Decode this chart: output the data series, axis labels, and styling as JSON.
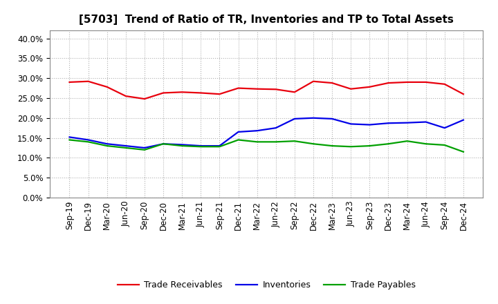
{
  "title": "[5703]  Trend of Ratio of TR, Inventories and TP to Total Assets",
  "labels": [
    "Sep-19",
    "Dec-19",
    "Mar-20",
    "Jun-20",
    "Sep-20",
    "Dec-20",
    "Mar-21",
    "Jun-21",
    "Sep-21",
    "Dec-21",
    "Mar-22",
    "Jun-22",
    "Sep-22",
    "Dec-22",
    "Mar-23",
    "Jun-23",
    "Sep-23",
    "Dec-23",
    "Mar-24",
    "Jun-24",
    "Sep-24",
    "Dec-24"
  ],
  "trade_receivables": [
    29.0,
    29.2,
    27.8,
    25.5,
    24.8,
    26.3,
    26.5,
    26.3,
    26.0,
    27.5,
    27.3,
    27.2,
    26.5,
    29.2,
    28.8,
    27.3,
    27.8,
    28.8,
    29.0,
    29.0,
    28.5,
    26.0
  ],
  "inventories": [
    15.2,
    14.5,
    13.5,
    13.0,
    12.5,
    13.5,
    13.3,
    13.0,
    13.0,
    16.5,
    16.8,
    17.5,
    19.8,
    20.0,
    19.8,
    18.5,
    18.3,
    18.7,
    18.8,
    19.0,
    17.5,
    19.5
  ],
  "trade_payables": [
    14.5,
    14.0,
    13.0,
    12.5,
    12.0,
    13.5,
    13.0,
    12.8,
    12.8,
    14.5,
    14.0,
    14.0,
    14.2,
    13.5,
    13.0,
    12.8,
    13.0,
    13.5,
    14.2,
    13.5,
    13.2,
    11.5
  ],
  "ylim": [
    0,
    42
  ],
  "yticks": [
    0.0,
    5.0,
    10.0,
    15.0,
    20.0,
    25.0,
    30.0,
    35.0,
    40.0
  ],
  "line_colors": {
    "trade_receivables": "#e8000d",
    "inventories": "#0000e8",
    "trade_payables": "#00a000"
  },
  "background_color": "#ffffff",
  "plot_bg_color": "#ffffff",
  "grid_color": "#b0b0b0",
  "legend_labels": [
    "Trade Receivables",
    "Inventories",
    "Trade Payables"
  ],
  "title_fontsize": 11,
  "tick_fontsize": 8.5,
  "legend_fontsize": 9
}
